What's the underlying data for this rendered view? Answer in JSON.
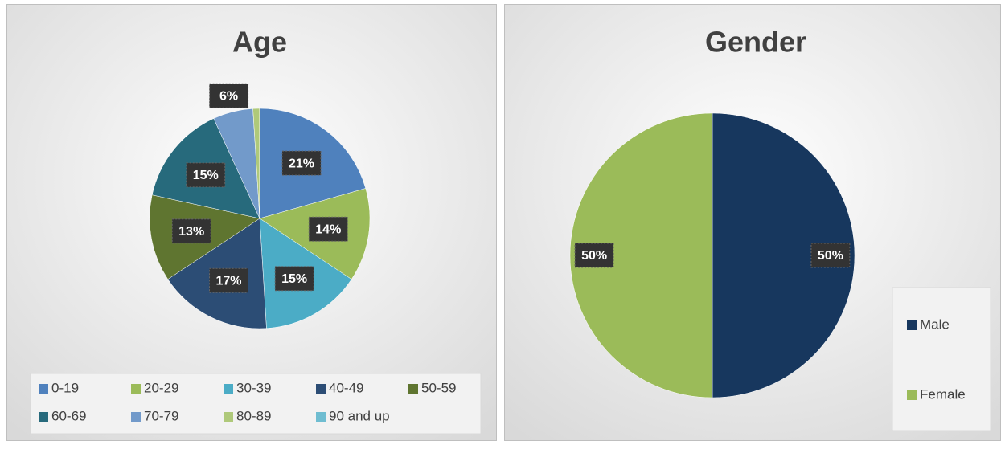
{
  "chart_data": [
    {
      "type": "pie",
      "title": "Age",
      "categories": [
        "0-19",
        "20-29",
        "30-39",
        "40-49",
        "50-59",
        "60-69",
        "70-79",
        "80-89",
        "90 and up"
      ],
      "values": [
        21,
        14,
        15,
        17,
        13,
        15,
        6,
        1,
        0
      ],
      "value_labels": [
        "21%",
        "14%",
        "15%",
        "17%",
        "13%",
        "15%",
        "6%",
        null,
        null
      ],
      "colors": [
        "#4f81bd",
        "#9bbb59",
        "#4bacc6",
        "#2c4d75",
        "#5f7530",
        "#276a7c",
        "#729aca",
        "#afc97a",
        "#6fbdd1"
      ],
      "legend": "bottom"
    },
    {
      "type": "pie",
      "title": "Gender",
      "categories": [
        "Male",
        "Female"
      ],
      "values": [
        50,
        50
      ],
      "value_labels": [
        "50%",
        "50%"
      ],
      "colors": [
        "#17375e",
        "#9bbb59"
      ],
      "legend": "right"
    }
  ]
}
